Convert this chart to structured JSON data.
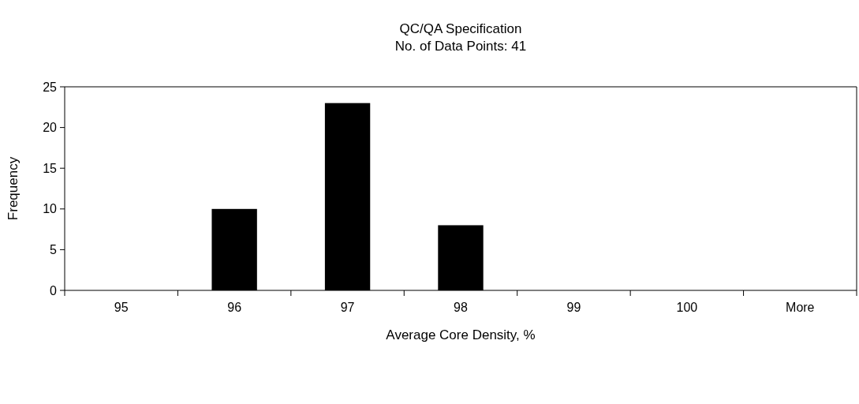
{
  "chart_data": {
    "type": "bar",
    "title": "QC/QA Specification",
    "subtitle": "No. of Data Points: 41",
    "xlabel": "Average Core Density, %",
    "ylabel": "Frequency",
    "categories": [
      "95",
      "96",
      "97",
      "98",
      "99",
      "100",
      "More"
    ],
    "values": [
      0,
      10,
      23,
      8,
      0,
      0,
      0
    ],
    "color": "#000000",
    "ylim": [
      0,
      25
    ],
    "yticks": [
      0,
      5,
      10,
      15,
      20,
      25
    ]
  }
}
